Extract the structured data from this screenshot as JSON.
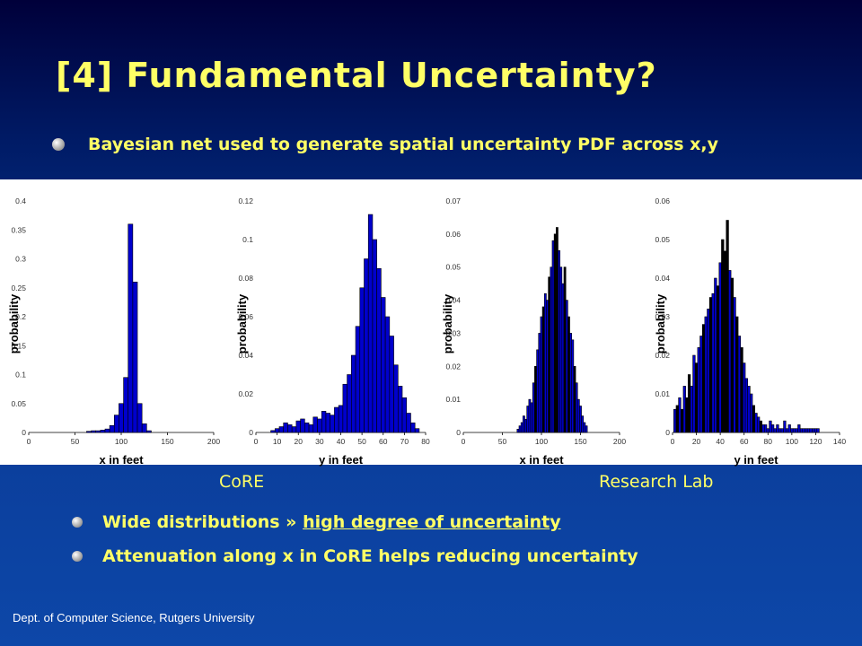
{
  "slide": {
    "title": "[4] Fundamental Uncertainty?",
    "bullet_main": "Bayesian net used to generate spatial uncertainty PDF across x,y",
    "label_core": "CoRE",
    "label_research": "Research Lab",
    "sub_bullets": [
      {
        "prefix": "Wide distributions » ",
        "highlight": "high degree of uncertainty"
      },
      {
        "prefix": "Attenuation along x in CoRE helps reducing uncertainty",
        "highlight": ""
      }
    ],
    "footer": "Dept. of Computer Science, Rutgers University"
  },
  "colors": {
    "title": "#ffff66",
    "bar": "#0000cc",
    "bar_dark": "#000000"
  },
  "chart_data": [
    {
      "type": "bar",
      "xlabel": "x in feet",
      "ylabel": "probability",
      "xlim": [
        0,
        200
      ],
      "ylim": [
        0,
        0.4
      ],
      "xticks": [
        0,
        50,
        100,
        150,
        200
      ],
      "yticks": [
        0,
        0.05,
        0.1,
        0.15,
        0.2,
        0.25,
        0.3,
        0.35,
        0.4
      ],
      "ytick_labels": [
        "0",
        "0.05",
        "0.1",
        "0.15",
        "0.2",
        "0.25",
        "0.3",
        "0.35",
        "0.4"
      ],
      "bin_width": 5,
      "x": [
        65,
        70,
        75,
        80,
        85,
        90,
        95,
        100,
        105,
        110,
        115,
        120,
        125,
        130
      ],
      "values": [
        0.002,
        0.003,
        0.003,
        0.004,
        0.006,
        0.012,
        0.03,
        0.05,
        0.095,
        0.36,
        0.26,
        0.05,
        0.015,
        0.003
      ],
      "dark": []
    },
    {
      "type": "bar",
      "xlabel": "y in feet",
      "ylabel": "probability",
      "xlim": [
        0,
        80
      ],
      "ylim": [
        0,
        0.12
      ],
      "xticks": [
        0,
        10,
        20,
        30,
        40,
        50,
        60,
        70,
        80
      ],
      "yticks": [
        0,
        0.02,
        0.04,
        0.06,
        0.08,
        0.1,
        0.12
      ],
      "ytick_labels": [
        "0",
        "0.02",
        "0.04",
        "0.06",
        "0.08",
        "0.1",
        "0.12"
      ],
      "bin_width": 2,
      "x": [
        8,
        10,
        12,
        14,
        16,
        18,
        20,
        22,
        24,
        26,
        28,
        30,
        32,
        34,
        36,
        38,
        40,
        42,
        44,
        46,
        48,
        50,
        52,
        54,
        56,
        58,
        60,
        62,
        64,
        66,
        68,
        70,
        72,
        74,
        76
      ],
      "values": [
        0.001,
        0.002,
        0.003,
        0.005,
        0.004,
        0.003,
        0.006,
        0.007,
        0.005,
        0.004,
        0.008,
        0.007,
        0.011,
        0.01,
        0.009,
        0.013,
        0.014,
        0.025,
        0.03,
        0.04,
        0.055,
        0.075,
        0.09,
        0.113,
        0.1,
        0.085,
        0.07,
        0.06,
        0.05,
        0.035,
        0.024,
        0.018,
        0.01,
        0.005,
        0.002
      ],
      "dark": []
    },
    {
      "type": "bar",
      "xlabel": "x in feet",
      "ylabel": "probability",
      "xlim": [
        0,
        200
      ],
      "ylim": [
        0,
        0.07
      ],
      "xticks": [
        0,
        50,
        100,
        150,
        200
      ],
      "yticks": [
        0,
        0.01,
        0.02,
        0.03,
        0.04,
        0.05,
        0.06,
        0.07
      ],
      "ytick_labels": [
        "0",
        "0.01",
        "0.02",
        "0.03",
        "0.04",
        "0.05",
        "0.06",
        "0.07"
      ],
      "bin_width": 2.5,
      "x": [
        70,
        72.5,
        75,
        77.5,
        80,
        82.5,
        85,
        87.5,
        90,
        92.5,
        95,
        97.5,
        100,
        102.5,
        105,
        107.5,
        110,
        112.5,
        115,
        117.5,
        120,
        122.5,
        125,
        127.5,
        130,
        132.5,
        135,
        137.5,
        140,
        142.5,
        145,
        147.5,
        150,
        152.5,
        155,
        157.5
      ],
      "values": [
        0.001,
        0.002,
        0.003,
        0.005,
        0.004,
        0.008,
        0.01,
        0.009,
        0.015,
        0.02,
        0.025,
        0.03,
        0.035,
        0.038,
        0.042,
        0.04,
        0.047,
        0.05,
        0.058,
        0.06,
        0.062,
        0.055,
        0.05,
        0.045,
        0.05,
        0.04,
        0.035,
        0.03,
        0.028,
        0.02,
        0.015,
        0.01,
        0.008,
        0.005,
        0.003,
        0.002
      ],
      "dark": [
        9,
        13,
        16,
        19,
        20,
        24,
        26,
        29
      ]
    },
    {
      "type": "bar",
      "xlabel": "y in feet",
      "ylabel": "probability",
      "xlim": [
        0,
        140
      ],
      "ylim": [
        0,
        0.06
      ],
      "xticks": [
        0,
        20,
        40,
        60,
        80,
        100,
        120,
        140
      ],
      "yticks": [
        0,
        0.01,
        0.02,
        0.03,
        0.04,
        0.05,
        0.06
      ],
      "ytick_labels": [
        "0",
        "0.01",
        "0.02",
        "0.03",
        "0.04",
        "0.05",
        "0.06"
      ],
      "bin_width": 2,
      "x": [
        2,
        4,
        6,
        8,
        10,
        12,
        14,
        16,
        18,
        20,
        22,
        24,
        26,
        28,
        30,
        32,
        34,
        36,
        38,
        40,
        42,
        44,
        46,
        48,
        50,
        52,
        54,
        56,
        58,
        60,
        62,
        64,
        66,
        68,
        70,
        72,
        74,
        76,
        78,
        80,
        82,
        84,
        86,
        88,
        90,
        92,
        94,
        96,
        98,
        100,
        102,
        104,
        106,
        108,
        110,
        112,
        114,
        116,
        118,
        120,
        122
      ],
      "values": [
        0.006,
        0.007,
        0.009,
        0.006,
        0.012,
        0.009,
        0.015,
        0.012,
        0.02,
        0.018,
        0.022,
        0.025,
        0.028,
        0.03,
        0.032,
        0.035,
        0.036,
        0.04,
        0.038,
        0.044,
        0.05,
        0.047,
        0.055,
        0.042,
        0.04,
        0.035,
        0.03,
        0.025,
        0.022,
        0.018,
        0.014,
        0.012,
        0.01,
        0.007,
        0.005,
        0.004,
        0.003,
        0.002,
        0.002,
        0.001,
        0.003,
        0.002,
        0.001,
        0.002,
        0.001,
        0.001,
        0.003,
        0.001,
        0.002,
        0.001,
        0.001,
        0.001,
        0.002,
        0.001,
        0.001,
        0.001,
        0.001,
        0.001,
        0.001,
        0.001,
        0.001
      ],
      "dark": [
        1,
        3,
        5,
        6,
        9,
        12,
        15,
        18,
        20,
        21,
        22,
        24,
        26,
        28,
        33,
        36
      ]
    }
  ]
}
